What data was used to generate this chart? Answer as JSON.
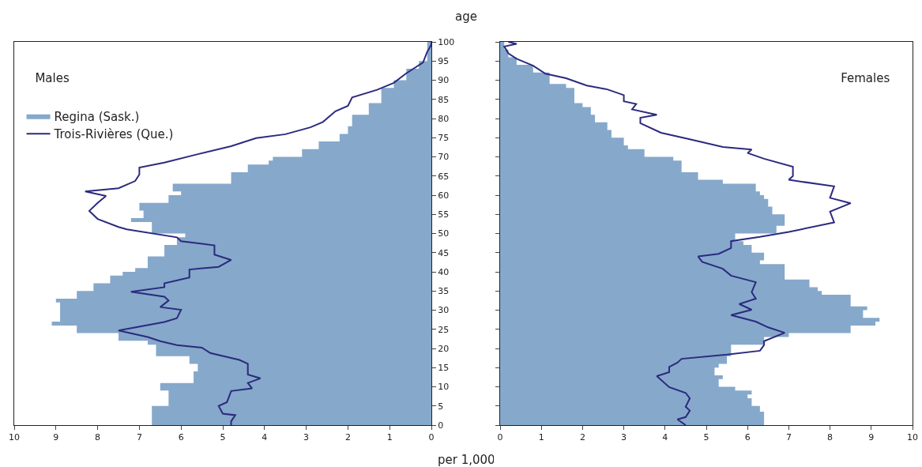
{
  "chart_data": [
    {
      "type": "area",
      "title": "Males",
      "ylabel": "age",
      "xlabel": "per 1,000",
      "orientation": "horizontal",
      "legend": "top left",
      "xlim": [
        10,
        0
      ],
      "xticks": [
        0,
        1,
        2,
        3,
        4,
        5,
        6,
        7,
        8,
        9,
        10
      ],
      "ylim": [
        0,
        100
      ],
      "yticks": [
        0,
        5,
        10,
        15,
        20,
        25,
        30,
        35,
        40,
        45,
        50,
        55,
        60,
        65,
        70,
        75,
        80,
        85,
        90,
        95,
        100
      ],
      "series": [
        {
          "name": "Regina (Sask.)",
          "color": "#86a8cb",
          "x": [
            0,
            2,
            5,
            9,
            11,
            14,
            16,
            18,
            21,
            22,
            24,
            26,
            27,
            30,
            32,
            33,
            35,
            37,
            39,
            40,
            41,
            44,
            47,
            48,
            49,
            50,
            53,
            54,
            56,
            58,
            60,
            61,
            63,
            66,
            68,
            69,
            70,
            72,
            74,
            76,
            78,
            81,
            84,
            85,
            88,
            90,
            93,
            95,
            98,
            100
          ],
          "values": [
            6.7,
            6.7,
            6.3,
            6.5,
            5.7,
            5.6,
            5.8,
            6.6,
            6.8,
            7.5,
            8.5,
            9.1,
            8.9,
            8.9,
            9.0,
            8.5,
            8.1,
            7.7,
            7.4,
            7.1,
            6.8,
            6.4,
            6.1,
            6.1,
            5.9,
            6.7,
            7.2,
            6.9,
            7.0,
            6.3,
            6.0,
            6.2,
            4.8,
            4.4,
            3.9,
            3.8,
            3.1,
            2.7,
            2.2,
            2.0,
            1.9,
            1.5,
            1.2,
            1.2,
            0.9,
            0.6,
            0.3,
            0.1,
            0.1,
            0.0
          ]
        },
        {
          "name": "Trois-Rivières (Que.)",
          "type": "line",
          "color": "#2b2a7e",
          "x": [
            0,
            1,
            2.6,
            3,
            5,
            6,
            8.9,
            9.6,
            11,
            12.2,
            13.2,
            16,
            17,
            18.8,
            20.2,
            20.9,
            21.9,
            23,
            24.7,
            26.9,
            27.9,
            30.1,
            30.8,
            32.5,
            33.5,
            34.8,
            36,
            37,
            38.5,
            40.6,
            41.3,
            43.1,
            44.5,
            46.9,
            48,
            49,
            51.1,
            51.7,
            53.8,
            55.9,
            58,
            59.8,
            61,
            61.8,
            63.7,
            65.4,
            67.2,
            68.5,
            70.7,
            72.8,
            74.9,
            75.9,
            77.7,
            79.1,
            81.9,
            83.3,
            85.5,
            87.5,
            89.3,
            91.8,
            94.6,
            97.4,
            99.3,
            100
          ],
          "values": [
            4.8,
            4.8,
            4.7,
            5.0,
            5.1,
            4.9,
            4.8,
            4.3,
            4.4,
            4.1,
            4.4,
            4.4,
            4.6,
            5.3,
            5.5,
            6.1,
            6.5,
            6.8,
            7.5,
            6.4,
            6.1,
            6.0,
            6.5,
            6.3,
            6.4,
            7.2,
            6.4,
            6.4,
            5.8,
            5.8,
            5.1,
            4.8,
            5.2,
            5.2,
            6.0,
            6.1,
            7.3,
            7.5,
            8.0,
            8.2,
            8.0,
            7.8,
            8.3,
            7.5,
            7.1,
            7.0,
            7.0,
            6.4,
            5.6,
            4.8,
            4.2,
            3.5,
            2.9,
            2.6,
            2.3,
            2.0,
            1.9,
            1.3,
            0.9,
            0.6,
            0.2,
            0.1,
            0.0,
            0.0
          ]
        }
      ]
    },
    {
      "type": "area",
      "title": "Females",
      "orientation": "horizontal",
      "tick_labels": "x",
      "xlim": [
        0,
        10
      ],
      "xticks": [
        0,
        1,
        2,
        3,
        4,
        5,
        6,
        7,
        8,
        9,
        10
      ],
      "ylim": [
        0,
        100
      ],
      "yticks": [
        0,
        5,
        10,
        15,
        20,
        25,
        30,
        35,
        40,
        45,
        50,
        55,
        60,
        65,
        70,
        75,
        80,
        85,
        90,
        95,
        100
      ],
      "series": [
        {
          "color": "#86a8cb",
          "x": [
            0,
            3.5,
            5,
            7,
            8,
            9,
            10,
            12,
            13,
            15,
            16,
            18,
            19,
            21,
            23,
            24,
            26,
            27,
            28,
            30,
            31,
            33,
            34,
            35,
            36,
            38,
            40,
            42,
            43,
            45,
            47,
            48,
            50,
            52,
            53,
            55,
            57,
            59,
            60,
            61,
            63,
            64,
            66,
            67,
            69,
            70,
            72,
            73,
            75,
            77,
            79,
            81,
            83,
            84,
            88,
            89,
            92,
            93,
            94,
            96,
            98,
            100
          ],
          "values": [
            6.4,
            6.3,
            6.1,
            6.0,
            6.1,
            5.7,
            5.3,
            5.4,
            5.2,
            5.3,
            5.5,
            5.6,
            5.6,
            6.4,
            7.0,
            8.5,
            9.1,
            9.2,
            8.8,
            8.9,
            8.5,
            8.5,
            7.8,
            7.7,
            7.5,
            6.9,
            6.9,
            6.3,
            6.4,
            6.1,
            5.9,
            5.7,
            6.7,
            6.9,
            6.9,
            6.6,
            6.5,
            6.4,
            6.3,
            6.2,
            5.4,
            4.8,
            4.4,
            4.4,
            4.2,
            3.5,
            3.1,
            3.0,
            2.7,
            2.6,
            2.3,
            2.2,
            2.0,
            1.8,
            1.6,
            1.2,
            0.8,
            0.8,
            0.4,
            0.2,
            0.1,
            0.1
          ]
        },
        {
          "type": "line",
          "color": "#2b2a7e",
          "x": [
            0,
            1.5,
            2.1,
            3.8,
            4.8,
            7,
            8.4,
            9.9,
            12.8,
            13.8,
            15.2,
            16.3,
            17.3,
            18.4,
            19.4,
            20.9,
            21.9,
            24.1,
            25.5,
            27,
            28.7,
            30.1,
            31.6,
            33,
            34.7,
            37.3,
            39,
            40.8,
            42.6,
            44,
            44.7,
            46.2,
            48,
            49.1,
            50.4,
            52.9,
            55.7,
            57.9,
            59.3,
            62.3,
            64,
            65,
            67.4,
            69.5,
            71,
            71.9,
            72.6,
            74.6,
            76.3,
            78.8,
            80.2,
            81,
            82.4,
            83.8,
            84.5,
            86.1,
            87.6,
            88.6,
            90.5,
            91.7,
            93.8,
            95.6,
            97,
            98.8,
            99.5,
            100
          ],
          "values": [
            4.5,
            4.3,
            4.5,
            4.6,
            4.5,
            4.6,
            4.5,
            4.1,
            3.8,
            4.1,
            4.1,
            4.3,
            4.4,
            5.5,
            6.3,
            6.4,
            6.4,
            6.9,
            6.5,
            6.2,
            5.6,
            6.1,
            5.8,
            6.2,
            6.1,
            6.2,
            5.6,
            5.4,
            4.9,
            4.8,
            5.3,
            5.6,
            5.6,
            6.3,
            7.0,
            8.1,
            8.0,
            8.5,
            8.0,
            8.1,
            7.0,
            7.1,
            7.1,
            6.4,
            6.0,
            6.1,
            5.4,
            4.6,
            3.9,
            3.4,
            3.4,
            3.8,
            3.2,
            3.3,
            3.0,
            3.0,
            2.6,
            2.1,
            1.6,
            1.1,
            0.8,
            0.4,
            0.2,
            0.1,
            0.4,
            0.2
          ]
        }
      ]
    }
  ]
}
